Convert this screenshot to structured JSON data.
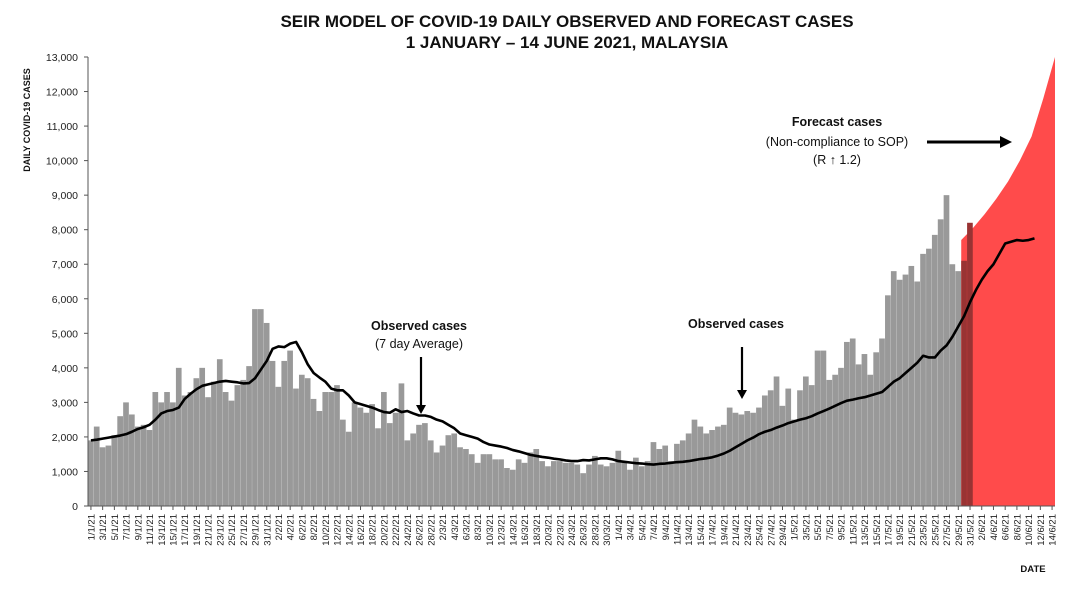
{
  "chart_data": {
    "type": "bar",
    "title_line1": "SEIR MODEL OF COVID-19 DAILY OBSERVED AND FORECAST CASES",
    "title_line2": "1 JANUARY – 14 JUNE 2021, MALAYSIA",
    "ylabel": "DAILY COVID-19 CASES",
    "xlabel": "DATE",
    "ylim": [
      0,
      13000
    ],
    "y_ticks": [
      "0",
      "1,000",
      "2,000",
      "3,000",
      "4,000",
      "5,000",
      "6,000",
      "7,000",
      "8,000",
      "9,000",
      "10,000",
      "11,000",
      "12,000",
      "13,000"
    ],
    "x_tick_labels": [
      "1/1/21",
      "3/1/21",
      "5/1/21",
      "7/1/21",
      "9/1/21",
      "11/1/21",
      "13/1/21",
      "15/1/21",
      "17/1/21",
      "19/1/21",
      "21/1/21",
      "23/1/21",
      "25/1/21",
      "27/1/21",
      "29/1/21",
      "31/1/21",
      "2/2/21",
      "4/2/21",
      "6/2/21",
      "8/2/21",
      "10/2/21",
      "12/2/21",
      "14/2/21",
      "16/2/21",
      "18/2/21",
      "20/2/21",
      "22/2/21",
      "24/2/21",
      "26/2/21",
      "28/2/21",
      "2/3/21",
      "4/3/21",
      "6/3/21",
      "8/3/21",
      "10/3/21",
      "12/3/21",
      "14/3/21",
      "16/3/21",
      "18/3/21",
      "20/3/21",
      "22/3/21",
      "24/3/21",
      "26/3/21",
      "28/3/21",
      "30/3/21",
      "1/4/21",
      "3/4/21",
      "5/4/21",
      "7/4/21",
      "9/4/21",
      "11/4/21",
      "13/4/21",
      "15/4/21",
      "17/4/21",
      "19/4/21",
      "21/4/21",
      "23/4/21",
      "25/4/21",
      "27/4/21",
      "29/4/21",
      "1/5/21",
      "3/5/21",
      "5/5/21",
      "7/5/21",
      "9/5/21",
      "11/5/21",
      "13/5/21",
      "15/5/21",
      "17/5/21",
      "19/5/21",
      "21/5/21",
      "23/5/21",
      "25/5/21",
      "27/5/21",
      "29/5/21",
      "31/5/21",
      "2/6/21",
      "4/6/21",
      "6/6/21",
      "8/6/21",
      "10/6/21",
      "12/6/21",
      "14/6/21"
    ],
    "observed_cases": [
      1900,
      2300,
      1700,
      1750,
      2050,
      2600,
      3000,
      2650,
      2300,
      2350,
      2200,
      3300,
      3000,
      3300,
      3000,
      4000,
      3200,
      3300,
      3700,
      4000,
      3150,
      3600,
      4250,
      3300,
      3050,
      3500,
      3650,
      4050,
      5700,
      5700,
      5300,
      4200,
      3450,
      4200,
      4500,
      3400,
      3800,
      3700,
      3100,
      2750,
      3300,
      3300,
      3500,
      2500,
      2150,
      3000,
      2850,
      2700,
      2950,
      2250,
      3300,
      2400,
      2700,
      3550,
      1900,
      2100,
      2350,
      2400,
      1900,
      1550,
      1750,
      2050,
      2100,
      1700,
      1650,
      1500,
      1250,
      1500,
      1500,
      1350,
      1350,
      1100,
      1050,
      1350,
      1250,
      1550,
      1650,
      1300,
      1150,
      1300,
      1300,
      1250,
      1250,
      1200,
      950,
      1200,
      1450,
      1200,
      1150,
      1250,
      1600,
      1300,
      1050,
      1400,
      1150,
      1300,
      1850,
      1650,
      1750,
      1300,
      1800,
      1900,
      2100,
      2500,
      2300,
      2100,
      2200,
      2300,
      2350,
      2850,
      2700,
      2650,
      2750,
      2700,
      2850,
      3200,
      3350,
      3750,
      2900,
      3400,
      2500,
      3350,
      3750,
      3500,
      4500,
      4500,
      3650,
      3800,
      4000,
      4750,
      4850,
      4100,
      4400,
      3800,
      4450,
      4850,
      6100,
      6800,
      6550,
      6700,
      6950,
      6500,
      7300,
      7450,
      7850,
      8300,
      9000,
      7000,
      6800,
      7100,
      8200
    ],
    "average_7day": [
      1900,
      1920,
      1950,
      1980,
      2010,
      2040,
      2080,
      2150,
      2230,
      2280,
      2350,
      2500,
      2680,
      2750,
      2780,
      2850,
      3100,
      3250,
      3380,
      3480,
      3520,
      3560,
      3600,
      3620,
      3600,
      3580,
      3550,
      3560,
      3700,
      3950,
      4200,
      4550,
      4620,
      4600,
      4700,
      4750,
      4450,
      4100,
      3850,
      3720,
      3600,
      3400,
      3350,
      3350,
      3200,
      3000,
      2950,
      2900,
      2850,
      2780,
      2720,
      2700,
      2800,
      2720,
      2750,
      2680,
      2620,
      2620,
      2580,
      2500,
      2450,
      2350,
      2250,
      2100,
      2050,
      2000,
      1950,
      1850,
      1780,
      1750,
      1720,
      1680,
      1620,
      1580,
      1530,
      1480,
      1450,
      1420,
      1400,
      1370,
      1350,
      1320,
      1300,
      1300,
      1330,
      1320,
      1350,
      1380,
      1380,
      1350,
      1300,
      1280,
      1260,
      1240,
      1230,
      1210,
      1200,
      1220,
      1230,
      1250,
      1270,
      1280,
      1300,
      1330,
      1360,
      1380,
      1410,
      1460,
      1520,
      1600,
      1700,
      1800,
      1900,
      1980,
      2080,
      2150,
      2200,
      2270,
      2330,
      2400,
      2450,
      2500,
      2540,
      2600,
      2680,
      2750,
      2820,
      2900,
      2980,
      3050,
      3080,
      3120,
      3150,
      3200,
      3250,
      3300,
      3450,
      3600,
      3700,
      3850,
      4000,
      4150,
      4350,
      4300,
      4300,
      4500,
      4650,
      4900,
      5200,
      5500,
      5900,
      6250,
      6550,
      6800,
      7000,
      7300,
      7600,
      7650,
      7700,
      7680,
      7700,
      7750
    ],
    "forecast_start_index": 149,
    "forecast_dates": [
      "29/5/21",
      "31/5/21",
      "2/6/21",
      "4/6/21",
      "6/6/21",
      "8/6/21",
      "10/6/21",
      "12/6/21",
      "14/6/21"
    ],
    "forecast_values": [
      7700,
      8050,
      8450,
      8900,
      9400,
      10000,
      10700,
      11800,
      13000
    ],
    "series": [
      {
        "name": "Observed cases",
        "color": "#999999"
      },
      {
        "name": "Observed cases (7 day Average)",
        "color": "#000000"
      },
      {
        "name": "Forecast cases (Non-compliance to SOP) (R ↑ 1.2)",
        "color": "#ff4b4b"
      }
    ],
    "overlap_color": "#993333",
    "grid": false,
    "annotations": {
      "avg_label_1": "Observed cases",
      "avg_label_2": "(7 day Average)",
      "obs_label": "Observed cases",
      "fc_label_1": "Forecast cases",
      "fc_label_2": "(Non-compliance to SOP)",
      "fc_label_3": "(R ↑ 1.2)"
    }
  }
}
